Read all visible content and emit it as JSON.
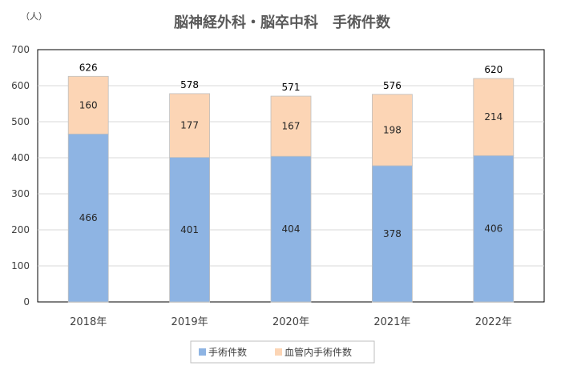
{
  "chart_data": {
    "type": "bar",
    "stacked": true,
    "title": "脳神経外科・脳卒中科　手術件数",
    "unit_label": "（人）",
    "categories": [
      "2018年",
      "2019年",
      "2020年",
      "2021年",
      "2022年"
    ],
    "series": [
      {
        "name": "手術件数",
        "values": [
          466,
          401,
          404,
          378,
          406
        ],
        "color": "#8EB4E3"
      },
      {
        "name": "血管内手術件数",
        "values": [
          160,
          177,
          167,
          198,
          214
        ],
        "color": "#FCD5B5"
      }
    ],
    "totals": [
      626,
      578,
      571,
      576,
      620
    ],
    "ylim": [
      0,
      700
    ],
    "yticks": [
      0,
      100,
      200,
      300,
      400,
      500,
      600,
      700
    ],
    "grid": true,
    "legend_position": "bottom"
  }
}
